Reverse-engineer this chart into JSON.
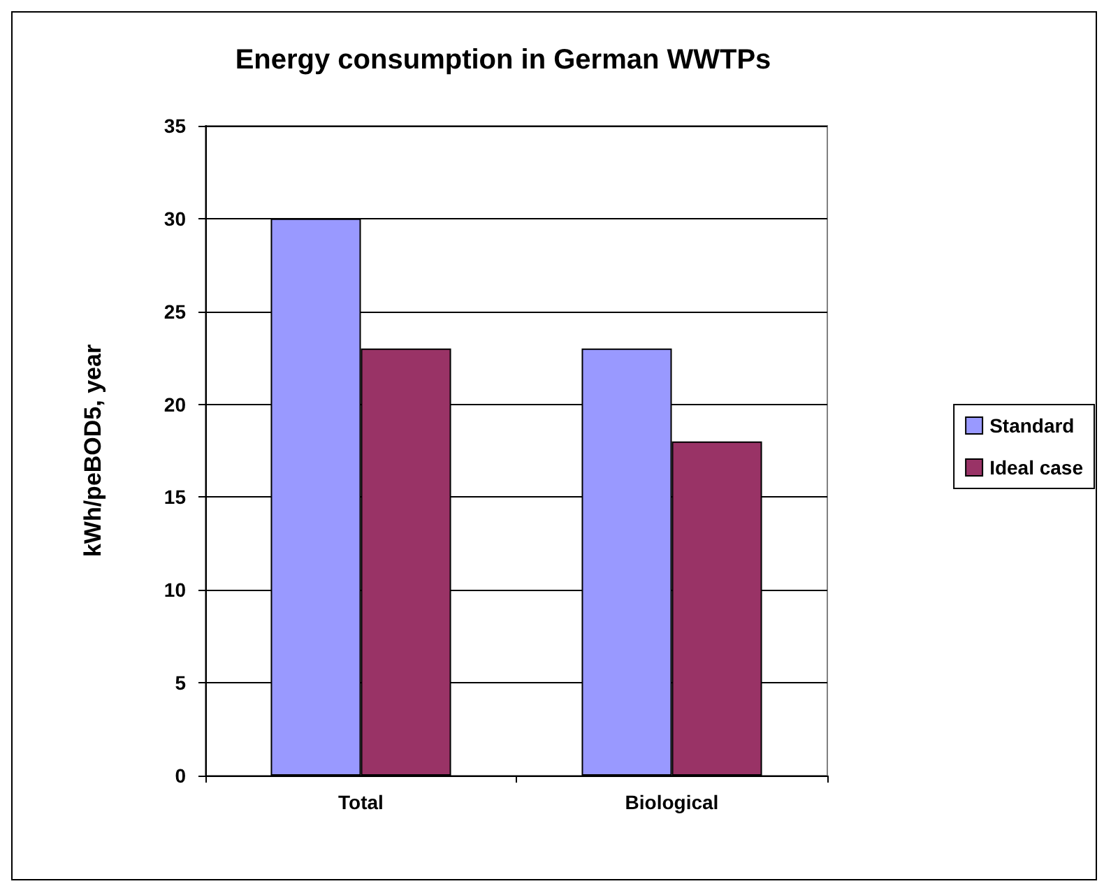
{
  "chart_data": {
    "type": "bar",
    "title": "Energy consumption in German WWTPs",
    "ylabel": "kWh/peBOD5, year",
    "categories": [
      "Total",
      "Biological"
    ],
    "series": [
      {
        "name": "Standard",
        "color": "#9999ff",
        "values": [
          30,
          23
        ]
      },
      {
        "name": "Ideal case",
        "color": "#993366",
        "values": [
          23,
          18
        ]
      }
    ],
    "ylim": [
      0,
      35
    ],
    "yticks": [
      0,
      5,
      10,
      15,
      20,
      25,
      30,
      35
    ],
    "grid": "y",
    "legend": "right"
  }
}
